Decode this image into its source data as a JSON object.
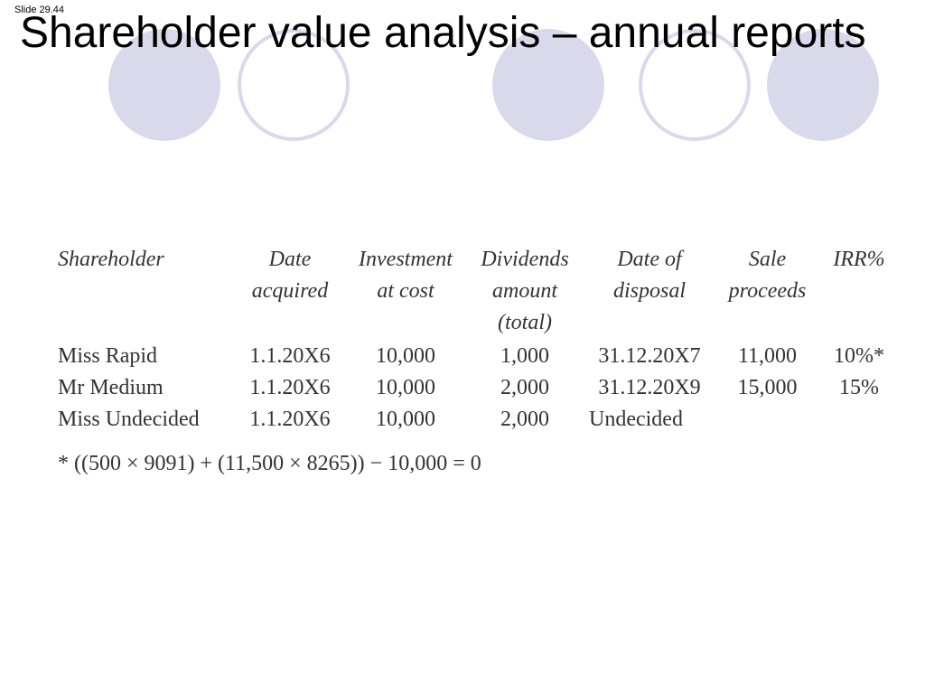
{
  "slide": {
    "number": "Slide 29.44",
    "title": "Shareholder value analysis – annual reports"
  },
  "table": {
    "headers": [
      [
        "Shareholder"
      ],
      [
        "Date",
        "acquired"
      ],
      [
        "Investment",
        "at cost"
      ],
      [
        "Dividends",
        "amount",
        "(total)"
      ],
      [
        "Date of",
        "disposal"
      ],
      [
        "Sale",
        "proceeds"
      ],
      [
        "IRR%"
      ]
    ],
    "rows": [
      [
        "Miss Rapid",
        "1.1.20X6",
        "10,000",
        "1,000",
        "31.12.20X7",
        "11,000",
        "10%*"
      ],
      [
        "Mr Medium",
        "1.1.20X6",
        "10,000",
        "2,000",
        "31.12.20X9",
        "15,000",
        "15%"
      ],
      [
        "Miss Undecided",
        "1.1.20X6",
        "10,000",
        "2,000",
        "Undecided",
        "",
        ""
      ]
    ]
  },
  "footnote": "* ((500 × 9091) + (11,500 × 8265)) − 10,000 = 0",
  "colors": {
    "decoration": "#d9d9ec"
  }
}
